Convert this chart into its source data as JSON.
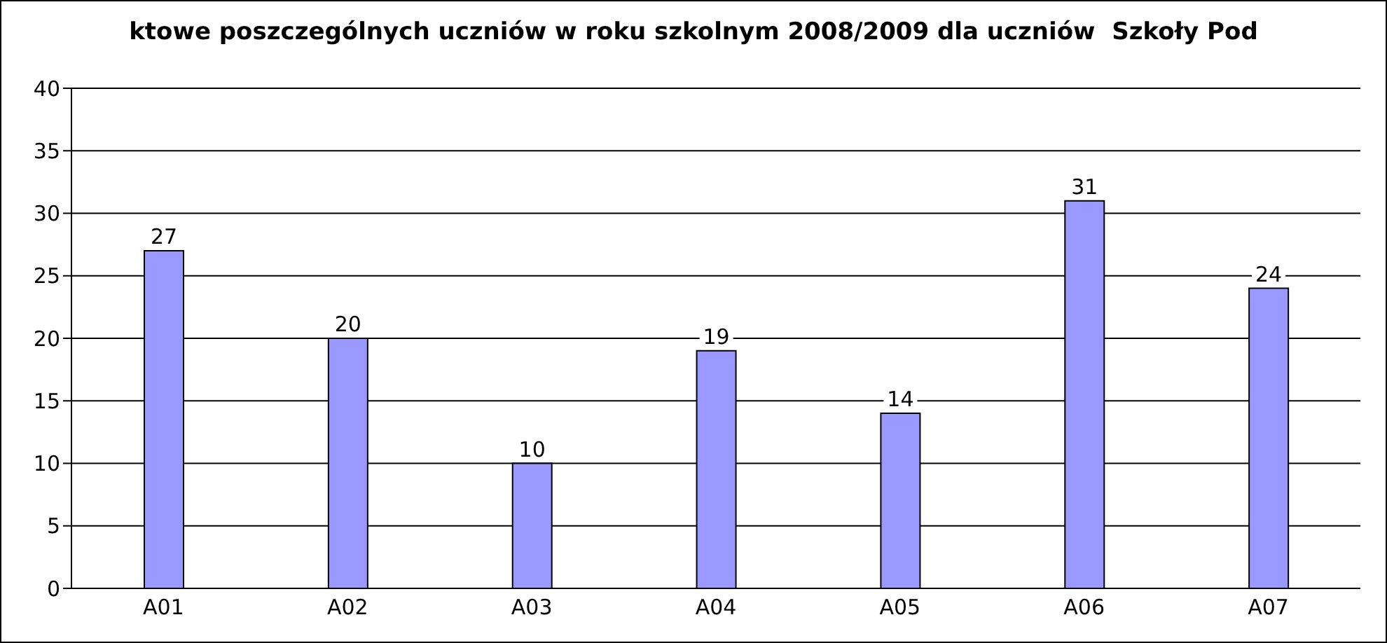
{
  "chart_data": {
    "type": "bar",
    "title": "ktowe poszczególnych uczniów w roku szkolnym 2008/2009 dla uczniów  Szkoły Pod",
    "categories": [
      "A01",
      "A02",
      "A03",
      "A04",
      "A05",
      "A06",
      "A07"
    ],
    "values": [
      27,
      20,
      10,
      19,
      14,
      31,
      24
    ],
    "color": "#9999ff",
    "ylim": [
      0,
      40
    ],
    "yticks": [
      0,
      5,
      10,
      15,
      20,
      25,
      30,
      35,
      40
    ],
    "grid": "y",
    "data_labels": true
  }
}
